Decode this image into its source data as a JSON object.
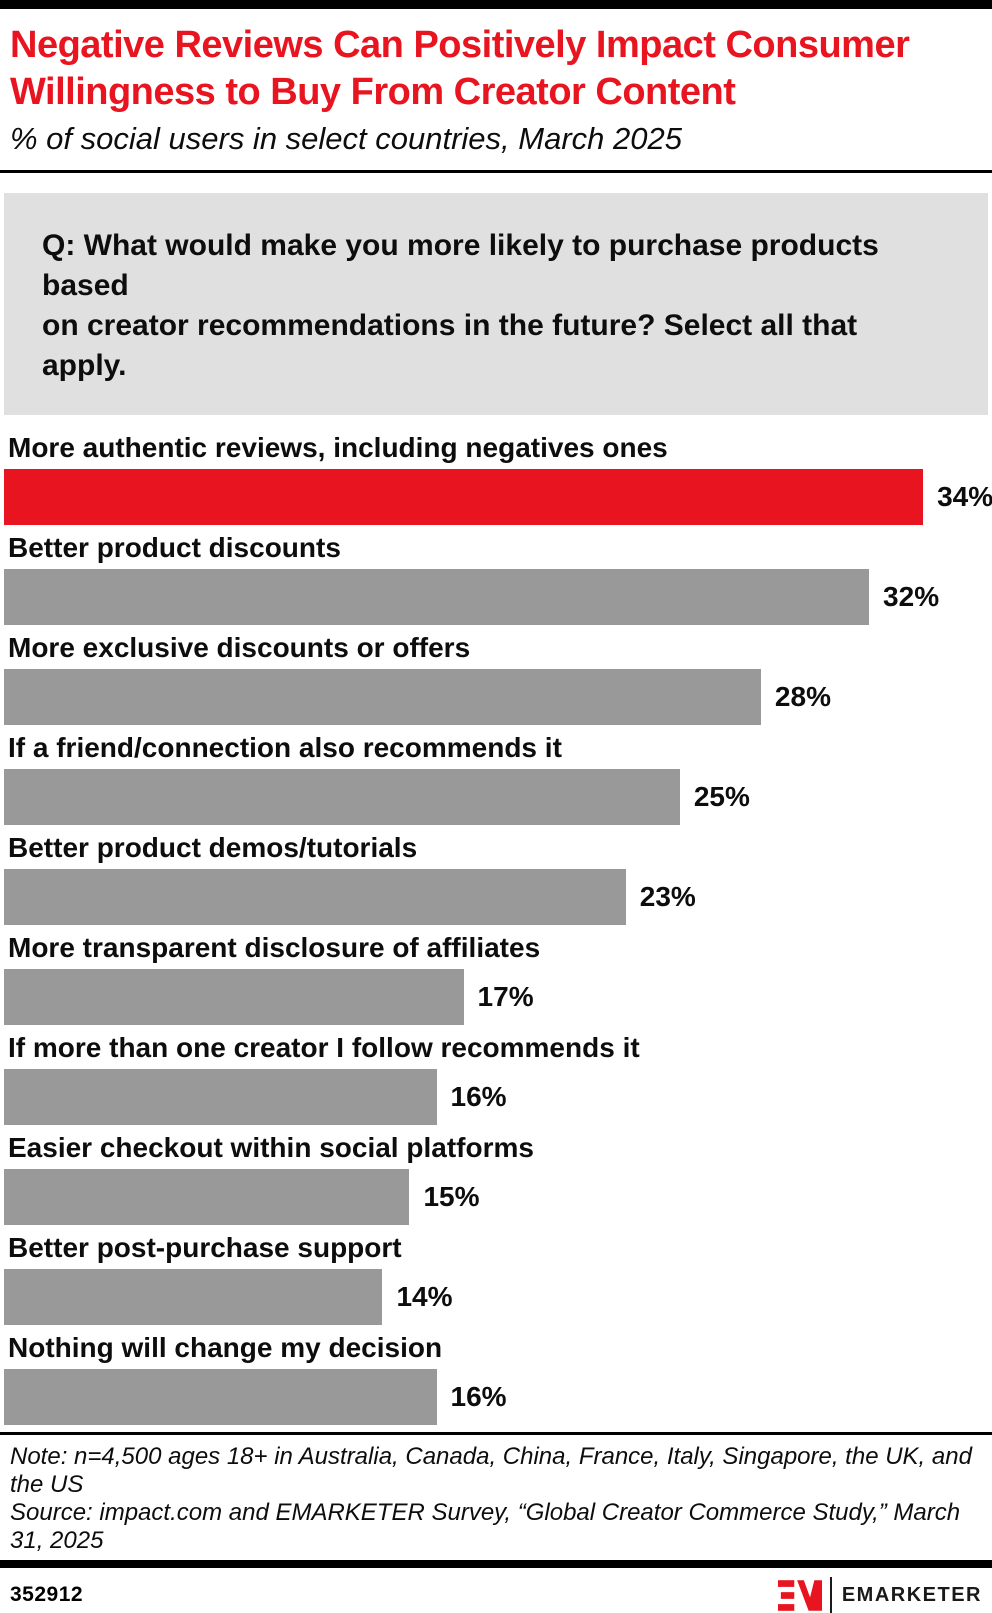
{
  "page": {
    "title_lines": [
      "Negative Reviews Can Positively Impact Consumer",
      "Willingness to Buy From Creator Content"
    ],
    "subtitle": "% of social users in select countries, March 2025",
    "question_lines": [
      "Q: What would make you more likely to purchase products based",
      "on creator recommendations in the future? Select all that apply."
    ],
    "note": "Note: n=4,500 ages 18+ in Australia, Canada, China, France, Italy, Singapore, the UK, and the US",
    "source": "Source: impact.com and EMARKETER Survey, “Global Creator Commerce Study,” March 31, 2025",
    "footer_id": "352912",
    "brand": "EMARKETER"
  },
  "colors": {
    "accent_red": "#e8141f",
    "bar_gray": "#999999",
    "question_bg": "#e0e0e0",
    "text_black": "#0d0d0d"
  },
  "chart_data": {
    "type": "bar",
    "orientation": "horizontal",
    "title": "Negative Reviews Can Positively Impact Consumer Willingness to Buy From Creator Content",
    "subtitle": "% of social users in select countries, March 2025",
    "unit": "%",
    "categories": [
      "More authentic reviews, including negatives ones",
      "Better product discounts",
      "More exclusive discounts or offers",
      "If a friend/connection also recommends it",
      "Better product demos/tutorials",
      "More transparent disclosure of affiliates",
      "If more than one creator I follow recommends it",
      "Easier checkout within social platforms",
      "Better post-purchase support",
      "Nothing will change my decision"
    ],
    "values": [
      34,
      32,
      28,
      25,
      23,
      17,
      16,
      15,
      14,
      16
    ],
    "value_labels": [
      "34%",
      "32%",
      "28%",
      "25%",
      "23%",
      "17%",
      "16%",
      "15%",
      "14%",
      "16%"
    ],
    "highlight_index": 0,
    "highlight_color": "#e8141f",
    "bar_color": "#999999",
    "xlim": [
      0,
      36.4
    ],
    "grid": false,
    "legend": "none",
    "value_label_position": "right-of-bar"
  }
}
